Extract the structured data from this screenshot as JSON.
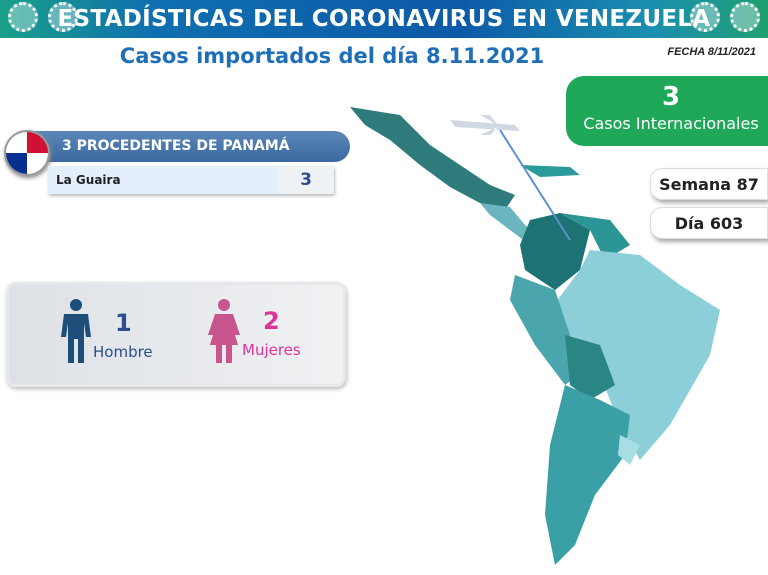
{
  "header": {
    "title": "ESTADÍSTICAS DEL CORONAVIRUS EN VENEZUELA",
    "subtitle": "Casos importados del día 8.11.2021",
    "fecha": "FECHA 8/11/2021"
  },
  "summary": {
    "count": "3",
    "label": "Casos Internacionales",
    "semana": "Semana 87",
    "dia": "Día 603"
  },
  "origin": {
    "title": "3 PROCEDENTES DE PANAMÁ",
    "flag": "panama-flag",
    "rows": [
      {
        "state": "La Guaira",
        "count": "3"
      }
    ]
  },
  "sex": {
    "men_count": "1",
    "men_label": "Hombre",
    "women_count": "2",
    "women_label": "Mujeres",
    "men_color": "#1d4e7a",
    "women_color": "#e0339a"
  },
  "colors": {
    "banner": "#0d5aa8",
    "accent_green": "#1fa85a",
    "map_teal": "#2a9a9a"
  }
}
